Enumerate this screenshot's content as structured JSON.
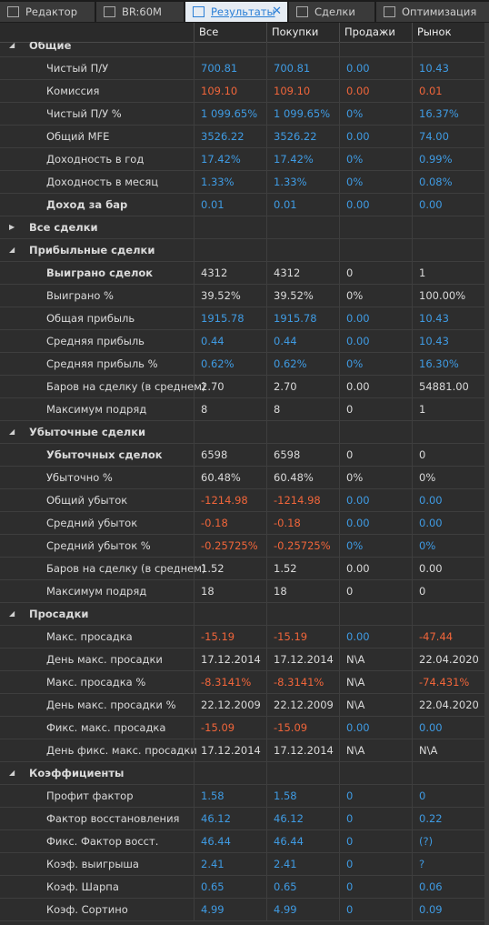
{
  "tabs": [
    {
      "label": "Редактор"
    },
    {
      "label": "BR:60M"
    },
    {
      "label": "Результаты"
    },
    {
      "label": "Сделки"
    },
    {
      "label": "Оптимизация"
    }
  ],
  "active_tab": 2,
  "columns": [
    "Все",
    "Покупки",
    "Продажи",
    "Рынок"
  ],
  "palette": {
    "blue": "#3f9be3",
    "red": "#f0653a",
    "white": "#dadada"
  },
  "rows": [
    {
      "label": "Общие",
      "section": true,
      "expanded": true
    },
    {
      "label": "Чистый П/У",
      "cells": [
        "700.81",
        "700.81",
        "0.00",
        "10.43"
      ],
      "tones": [
        "blue",
        "blue",
        "blue",
        "blue"
      ]
    },
    {
      "label": "Комиссия",
      "cells": [
        "109.10",
        "109.10",
        "0.00",
        "0.01"
      ],
      "tones": [
        "red",
        "red",
        "red",
        "red"
      ]
    },
    {
      "label": "Чистый П/У %",
      "cells": [
        "1 099.65%",
        "1 099.65%",
        "0%",
        "16.37%"
      ],
      "tones": [
        "blue",
        "blue",
        "blue",
        "blue"
      ]
    },
    {
      "label": "Общий MFE",
      "cells": [
        "3526.22",
        "3526.22",
        "0.00",
        "74.00"
      ],
      "tones": [
        "blue",
        "blue",
        "blue",
        "blue"
      ]
    },
    {
      "label": "Доходность в год",
      "cells": [
        "17.42%",
        "17.42%",
        "0%",
        "0.99%"
      ],
      "tones": [
        "blue",
        "blue",
        "blue",
        "blue"
      ]
    },
    {
      "label": "Доходность в месяц",
      "cells": [
        "1.33%",
        "1.33%",
        "0%",
        "0.08%"
      ],
      "tones": [
        "blue",
        "blue",
        "blue",
        "blue"
      ]
    },
    {
      "label": "Доход за бар",
      "bold": true,
      "cells": [
        "0.01",
        "0.01",
        "0.00",
        "0.00"
      ],
      "tones": [
        "blue",
        "blue",
        "blue",
        "blue"
      ]
    },
    {
      "label": "Все сделки",
      "section": true,
      "expanded": false
    },
    {
      "label": "Прибыльные сделки",
      "section": true,
      "expanded": true
    },
    {
      "label": "Выиграно сделок",
      "bold": true,
      "cells": [
        "4312",
        "4312",
        "0",
        "1"
      ],
      "tones": [
        "white",
        "white",
        "white",
        "white"
      ]
    },
    {
      "label": "Выиграно %",
      "cells": [
        "39.52%",
        "39.52%",
        "0%",
        "100.00%"
      ],
      "tones": [
        "white",
        "white",
        "white",
        "white"
      ]
    },
    {
      "label": "Общая прибыль",
      "cells": [
        "1915.78",
        "1915.78",
        "0.00",
        "10.43"
      ],
      "tones": [
        "blue",
        "blue",
        "blue",
        "blue"
      ]
    },
    {
      "label": "Средняя прибыль",
      "cells": [
        "0.44",
        "0.44",
        "0.00",
        "10.43"
      ],
      "tones": [
        "blue",
        "blue",
        "blue",
        "blue"
      ]
    },
    {
      "label": "Средняя прибыль %",
      "cells": [
        "0.62%",
        "0.62%",
        "0%",
        "16.30%"
      ],
      "tones": [
        "blue",
        "blue",
        "blue",
        "blue"
      ]
    },
    {
      "label": "Баров на сделку (в среднем)",
      "cells": [
        "2.70",
        "2.70",
        "0.00",
        "54881.00"
      ],
      "tones": [
        "white",
        "white",
        "white",
        "white"
      ]
    },
    {
      "label": "Максимум подряд",
      "cells": [
        "8",
        "8",
        "0",
        "1"
      ],
      "tones": [
        "white",
        "white",
        "white",
        "white"
      ]
    },
    {
      "label": "Убыточные сделки",
      "section": true,
      "expanded": true
    },
    {
      "label": "Убыточных сделок",
      "bold": true,
      "cells": [
        "6598",
        "6598",
        "0",
        "0"
      ],
      "tones": [
        "white",
        "white",
        "white",
        "white"
      ]
    },
    {
      "label": "Убыточно %",
      "cells": [
        "60.48%",
        "60.48%",
        "0%",
        "0%"
      ],
      "tones": [
        "white",
        "white",
        "white",
        "white"
      ]
    },
    {
      "label": "Общий убыток",
      "cells": [
        "-1214.98",
        "-1214.98",
        "0.00",
        "0.00"
      ],
      "tones": [
        "red",
        "red",
        "blue",
        "blue"
      ]
    },
    {
      "label": "Средний убыток",
      "cells": [
        "-0.18",
        "-0.18",
        "0.00",
        "0.00"
      ],
      "tones": [
        "red",
        "red",
        "blue",
        "blue"
      ]
    },
    {
      "label": "Средний убыток %",
      "cells": [
        "-0.25725%",
        "-0.25725%",
        "0%",
        "0%"
      ],
      "tones": [
        "red",
        "red",
        "blue",
        "blue"
      ]
    },
    {
      "label": "Баров на сделку (в среднем)",
      "cells": [
        "1.52",
        "1.52",
        "0.00",
        "0.00"
      ],
      "tones": [
        "white",
        "white",
        "white",
        "white"
      ]
    },
    {
      "label": "Максимум подряд",
      "cells": [
        "18",
        "18",
        "0",
        "0"
      ],
      "tones": [
        "white",
        "white",
        "white",
        "white"
      ]
    },
    {
      "label": "Просадки",
      "section": true,
      "expanded": true
    },
    {
      "label": "Макс. просадка",
      "cells": [
        "-15.19",
        "-15.19",
        "0.00",
        "-47.44"
      ],
      "tones": [
        "red",
        "red",
        "blue",
        "red"
      ]
    },
    {
      "label": "День макс. просадки",
      "cells": [
        "17.12.2014",
        "17.12.2014",
        "N\\A",
        "22.04.2020"
      ],
      "tones": [
        "white",
        "white",
        "white",
        "white"
      ]
    },
    {
      "label": "Макс. просадка %",
      "cells": [
        "-8.3141%",
        "-8.3141%",
        "N\\A",
        "-74.431%"
      ],
      "tones": [
        "red",
        "red",
        "white",
        "red"
      ]
    },
    {
      "label": "День макс. просадки %",
      "cells": [
        "22.12.2009",
        "22.12.2009",
        "N\\A",
        "22.04.2020"
      ],
      "tones": [
        "white",
        "white",
        "white",
        "white"
      ]
    },
    {
      "label": "Фикс. макс. просадка",
      "cells": [
        "-15.09",
        "-15.09",
        "0.00",
        "0.00"
      ],
      "tones": [
        "red",
        "red",
        "blue",
        "blue"
      ]
    },
    {
      "label": "День фикс. макс. просадки",
      "cells": [
        "17.12.2014",
        "17.12.2014",
        "N\\A",
        "N\\A"
      ],
      "tones": [
        "white",
        "white",
        "white",
        "white"
      ]
    },
    {
      "label": "Коэффициенты",
      "section": true,
      "expanded": true
    },
    {
      "label": "Профит фактор",
      "cells": [
        "1.58",
        "1.58",
        "0",
        "0"
      ],
      "tones": [
        "blue",
        "blue",
        "blue",
        "blue"
      ]
    },
    {
      "label": "Фактор восстановления",
      "cells": [
        "46.12",
        "46.12",
        "0",
        "0.22"
      ],
      "tones": [
        "blue",
        "blue",
        "blue",
        "blue"
      ]
    },
    {
      "label": "Фикс. Фактор восст.",
      "cells": [
        "46.44",
        "46.44",
        "0",
        "(?)"
      ],
      "tones": [
        "blue",
        "blue",
        "blue",
        "blue"
      ]
    },
    {
      "label": "Коэф. выигрыша",
      "cells": [
        "2.41",
        "2.41",
        "0",
        "?"
      ],
      "tones": [
        "blue",
        "blue",
        "blue",
        "blue"
      ]
    },
    {
      "label": "Коэф. Шарпа",
      "cells": [
        "0.65",
        "0.65",
        "0",
        "0.06"
      ],
      "tones": [
        "blue",
        "blue",
        "blue",
        "blue"
      ]
    },
    {
      "label": "Коэф. Сортино",
      "cells": [
        "4.99",
        "4.99",
        "0",
        "0.09"
      ],
      "tones": [
        "blue",
        "blue",
        "blue",
        "blue"
      ]
    }
  ]
}
